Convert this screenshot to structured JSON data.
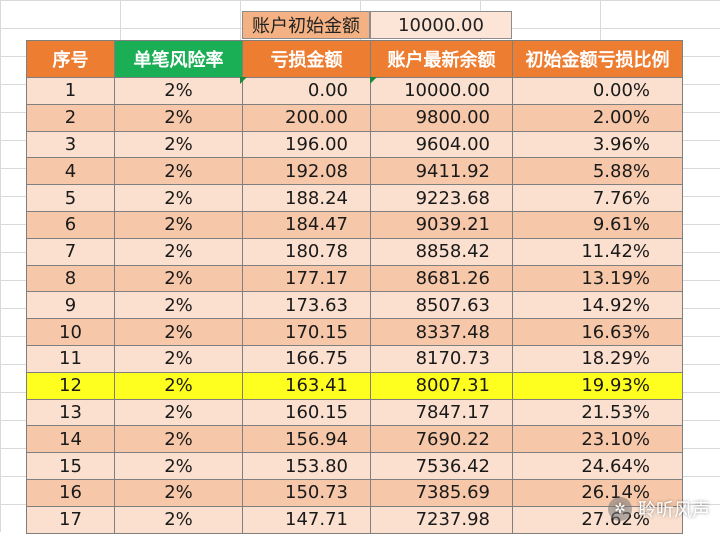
{
  "init": {
    "label": "账户初始金额",
    "value": "10000.00"
  },
  "headers": [
    "序号",
    "单笔风险率",
    "亏损金额",
    "账户最新余额",
    "初始金额亏损比例"
  ],
  "rows": [
    [
      "1",
      "2%",
      "0.00",
      "10000.00",
      "0.00%"
    ],
    [
      "2",
      "2%",
      "200.00",
      "9800.00",
      "2.00%"
    ],
    [
      "3",
      "2%",
      "196.00",
      "9604.00",
      "3.96%"
    ],
    [
      "4",
      "2%",
      "192.08",
      "9411.92",
      "5.88%"
    ],
    [
      "5",
      "2%",
      "188.24",
      "9223.68",
      "7.76%"
    ],
    [
      "6",
      "2%",
      "184.47",
      "9039.21",
      "9.61%"
    ],
    [
      "7",
      "2%",
      "180.78",
      "8858.42",
      "11.42%"
    ],
    [
      "8",
      "2%",
      "177.17",
      "8681.26",
      "13.19%"
    ],
    [
      "9",
      "2%",
      "173.63",
      "8507.63",
      "14.92%"
    ],
    [
      "10",
      "2%",
      "170.15",
      "8337.48",
      "16.63%"
    ],
    [
      "11",
      "2%",
      "166.75",
      "8170.73",
      "18.29%"
    ],
    [
      "12",
      "2%",
      "163.41",
      "8007.31",
      "19.93%"
    ],
    [
      "13",
      "2%",
      "160.15",
      "7847.17",
      "21.53%"
    ],
    [
      "14",
      "2%",
      "156.94",
      "7690.22",
      "23.10%"
    ],
    [
      "15",
      "2%",
      "153.80",
      "7536.42",
      "24.64%"
    ],
    [
      "16",
      "2%",
      "150.73",
      "7385.69",
      "26.14%"
    ],
    [
      "17",
      "2%",
      "147.71",
      "7237.98",
      "27.62%"
    ]
  ],
  "highlight_row": "12",
  "watermark": "聆听风声",
  "colors": {
    "header": "#ed7d31",
    "header_green": "#1aae55",
    "row_light": "#fbe0cf",
    "row_dark": "#f6c7a8",
    "highlight": "#ffff1f"
  }
}
